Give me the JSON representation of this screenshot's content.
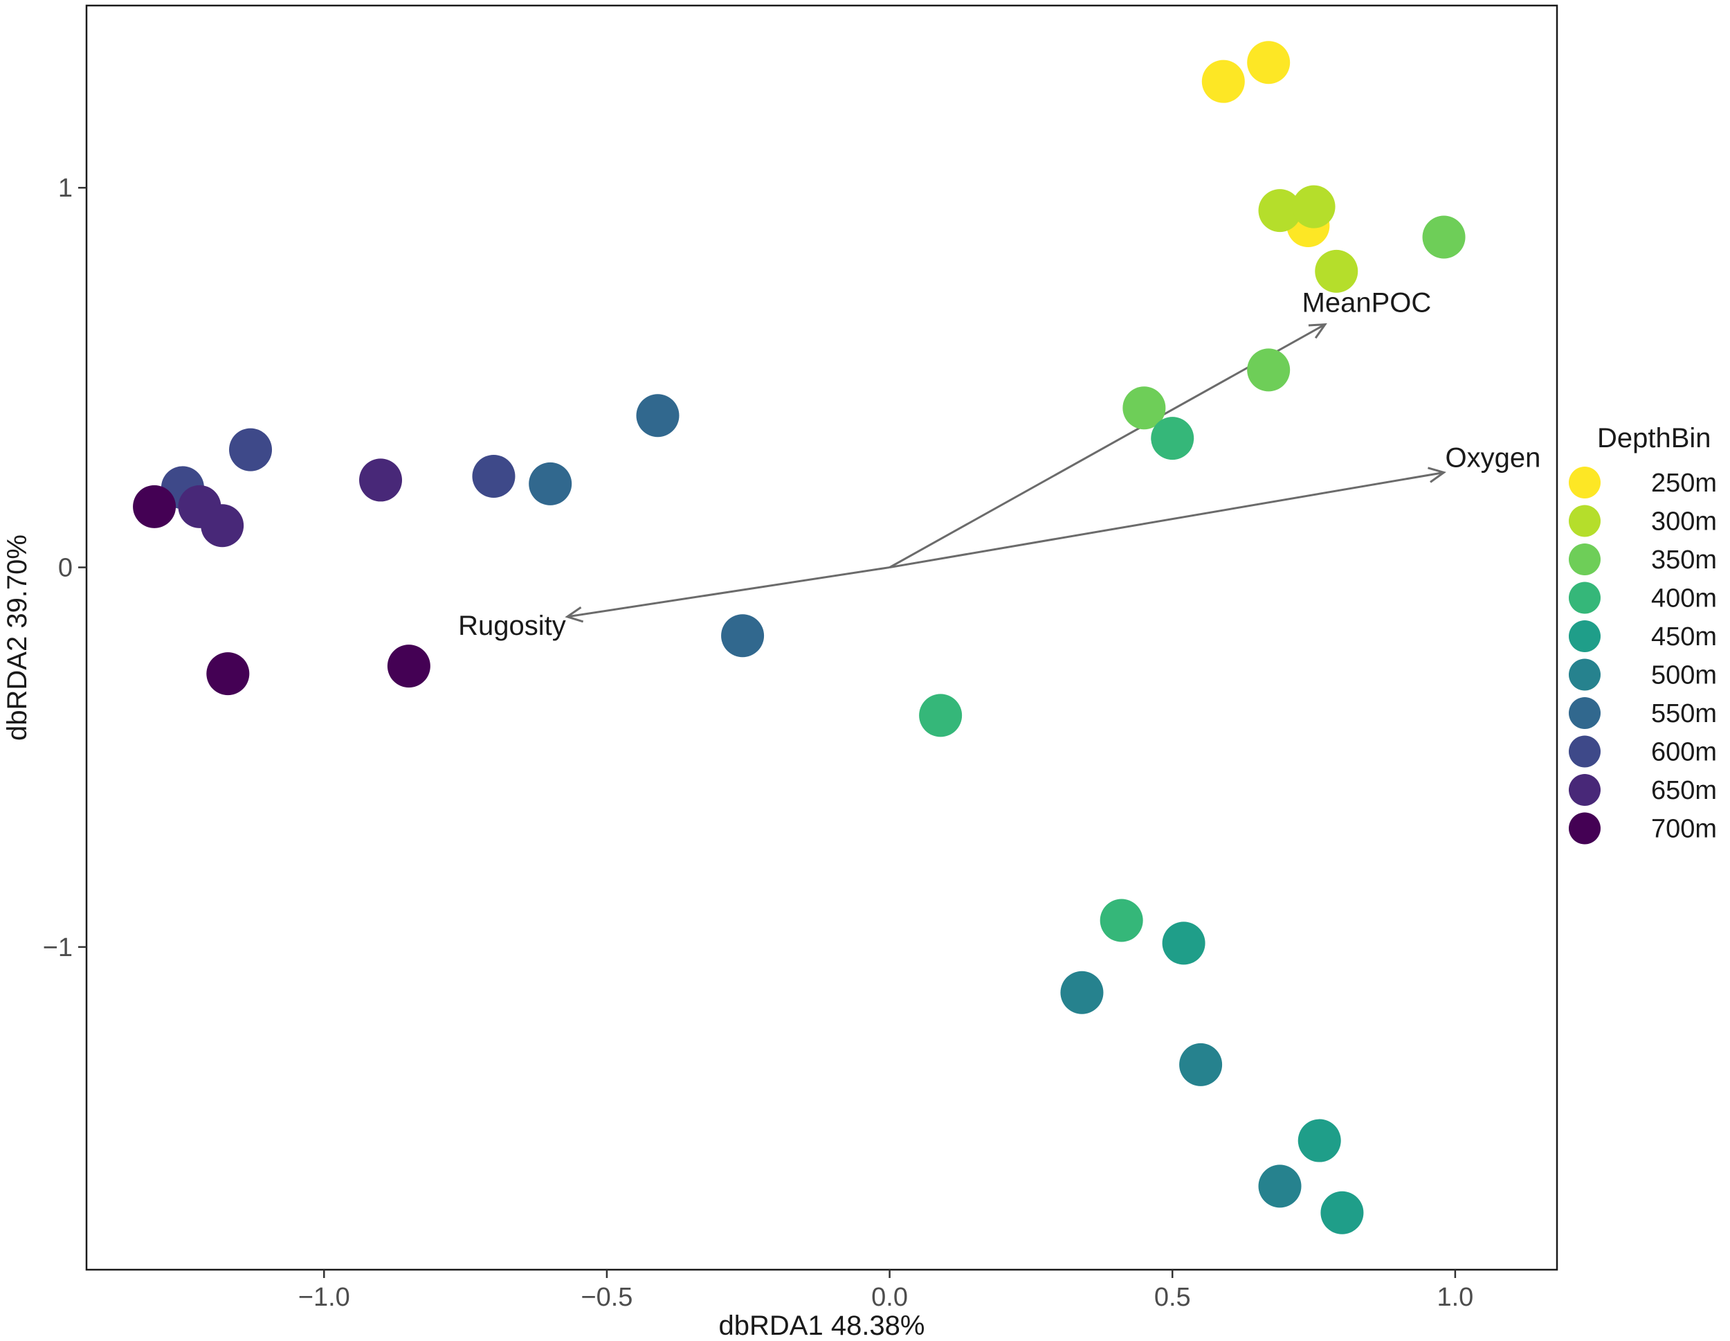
{
  "chart_data": {
    "type": "scatter",
    "title": "",
    "xlabel": "dbRDA1 48.38%",
    "ylabel": "dbRDA2 39.70%",
    "xlim": [
      -1.42,
      1.18
    ],
    "ylim": [
      -1.85,
      1.48
    ],
    "xticks": [
      {
        "value": -1.0,
        "label": "−1.0"
      },
      {
        "value": -0.5,
        "label": "−0.5"
      },
      {
        "value": 0.0,
        "label": "0.0"
      },
      {
        "value": 0.5,
        "label": "0.5"
      },
      {
        "value": 1.0,
        "label": "1.0"
      }
    ],
    "yticks": [
      {
        "value": 1,
        "label": "1"
      },
      {
        "value": 0,
        "label": "0"
      },
      {
        "value": -1,
        "label": "−1"
      }
    ],
    "grid": false,
    "legend": {
      "title": "DepthBin",
      "position": "right",
      "entries": [
        {
          "label": "250m",
          "color": "#FDE725"
        },
        {
          "label": "300m",
          "color": "#B5DE2B"
        },
        {
          "label": "350m",
          "color": "#6ECE58"
        },
        {
          "label": "400m",
          "color": "#35B779"
        },
        {
          "label": "450m",
          "color": "#1F9E89"
        },
        {
          "label": "500m",
          "color": "#26828E"
        },
        {
          "label": "550m",
          "color": "#31688E"
        },
        {
          "label": "600m",
          "color": "#3E4989"
        },
        {
          "label": "650m",
          "color": "#482878"
        },
        {
          "label": "700m",
          "color": "#440154"
        }
      ]
    },
    "series": [
      {
        "name": "250m",
        "points": [
          [
            0.59,
            1.28
          ],
          [
            0.67,
            1.33
          ],
          [
            0.74,
            0.9
          ]
        ]
      },
      {
        "name": "300m",
        "points": [
          [
            0.69,
            0.94
          ],
          [
            0.75,
            0.95
          ],
          [
            0.79,
            0.78
          ]
        ]
      },
      {
        "name": "350m",
        "points": [
          [
            0.98,
            0.87
          ],
          [
            0.67,
            0.52
          ],
          [
            0.45,
            0.42
          ]
        ]
      },
      {
        "name": "400m",
        "points": [
          [
            0.5,
            0.34
          ],
          [
            0.09,
            -0.39
          ],
          [
            0.41,
            -0.93
          ]
        ]
      },
      {
        "name": "450m",
        "points": [
          [
            0.52,
            -0.99
          ],
          [
            0.76,
            -1.51
          ],
          [
            0.8,
            -1.7
          ]
        ]
      },
      {
        "name": "500m",
        "points": [
          [
            0.34,
            -1.12
          ],
          [
            0.55,
            -1.31
          ],
          [
            0.69,
            -1.63
          ]
        ]
      },
      {
        "name": "550m",
        "points": [
          [
            -0.41,
            0.4
          ],
          [
            -0.6,
            0.22
          ],
          [
            -0.26,
            -0.18
          ]
        ]
      },
      {
        "name": "600m",
        "points": [
          [
            -1.13,
            0.31
          ],
          [
            -1.25,
            0.21
          ],
          [
            -0.7,
            0.24
          ]
        ]
      },
      {
        "name": "650m",
        "points": [
          [
            -0.9,
            0.23
          ],
          [
            -1.22,
            0.16
          ],
          [
            -1.18,
            0.11
          ]
        ]
      },
      {
        "name": "700m",
        "points": [
          [
            -1.3,
            0.16
          ],
          [
            -1.17,
            -0.28
          ],
          [
            -0.85,
            -0.26
          ]
        ]
      }
    ],
    "vectors": [
      {
        "name": "MeanPOC",
        "x": 0.77,
        "y": 0.64,
        "label": "MeanPOC",
        "label_side": "above"
      },
      {
        "name": "Oxygen",
        "x": 0.98,
        "y": 0.25,
        "label": "Oxygen",
        "label_side": "right"
      },
      {
        "name": "Rugosity",
        "x": -0.57,
        "y": -0.13,
        "label": "Rugosity",
        "label_side": "left"
      }
    ]
  }
}
